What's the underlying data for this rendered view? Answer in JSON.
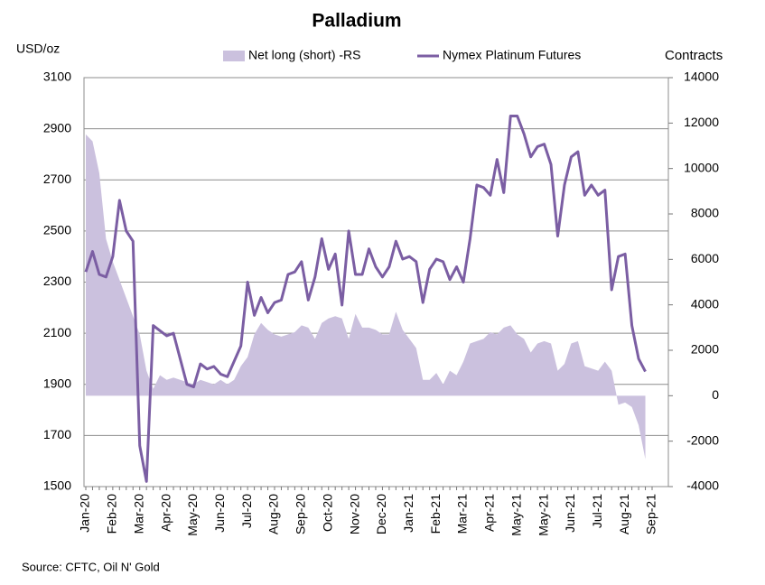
{
  "chart_data": {
    "type": "line-area",
    "title": "Palladium",
    "ylabel": "USD/oz",
    "y2label": "Contracts",
    "source": "Source: CFTC, Oil N' Gold",
    "categories": [
      "Jan-20",
      null,
      null,
      null,
      "Feb-20",
      null,
      null,
      null,
      "Mar-20",
      null,
      null,
      null,
      "Apr-20",
      null,
      null,
      null,
      "May-20",
      null,
      null,
      null,
      "Jun-20",
      null,
      null,
      null,
      "Jul-20",
      null,
      null,
      null,
      "Aug-20",
      null,
      null,
      null,
      "Sep-20",
      null,
      null,
      null,
      "Oct-20",
      null,
      null,
      null,
      "Nov-20",
      null,
      null,
      null,
      "Dec-20",
      null,
      null,
      null,
      "Jan-21",
      null,
      null,
      null,
      "Feb-21",
      null,
      null,
      null,
      "Mar-21",
      null,
      null,
      null,
      "Apr-21",
      null,
      null,
      null,
      "May-21",
      null,
      null,
      null,
      "May-21",
      null,
      null,
      null,
      "Jun-21",
      null,
      null,
      null,
      "Jul-21",
      null,
      null,
      null,
      "Aug-21",
      null,
      null,
      null,
      "Sep-21"
    ],
    "series": [
      {
        "name": "Net long (short) -RS",
        "type": "area",
        "axis": "y2",
        "color": "#cbc1de",
        "values": [
          11500,
          11200,
          9800,
          6900,
          5900,
          5100,
          4300,
          3500,
          2700,
          1100,
          300,
          900,
          700,
          800,
          700,
          600,
          500,
          700,
          600,
          500,
          700,
          500,
          700,
          1300,
          1700,
          2700,
          3200,
          2900,
          2700,
          2600,
          2700,
          2800,
          3100,
          3000,
          2500,
          3200,
          3400,
          3500,
          3400,
          2500,
          3600,
          3000,
          3000,
          2900,
          2700,
          2700,
          3700,
          2900,
          2500,
          2100,
          700,
          700,
          1000,
          500,
          1100,
          900,
          1500,
          2300,
          2400,
          2500,
          2800,
          2700,
          3000,
          3100,
          2700,
          2500,
          1900,
          2300,
          2400,
          2300,
          1100,
          1400,
          2300,
          2400,
          1300,
          1200,
          1100,
          1500,
          1100,
          -400,
          -300,
          -500,
          -1300,
          -2800,
          null
        ]
      },
      {
        "name": "Nymex Platinum Futures",
        "type": "line",
        "color": "#7b5ea3",
        "values": [
          2340,
          2420,
          2330,
          2320,
          2400,
          2620,
          2500,
          2460,
          1660,
          1520,
          2130,
          2110,
          2090,
          2100,
          2000,
          1900,
          1890,
          1980,
          1960,
          1970,
          1940,
          1930,
          1990,
          2050,
          2300,
          2170,
          2240,
          2180,
          2220,
          2230,
          2330,
          2340,
          2380,
          2230,
          2320,
          2470,
          2350,
          2410,
          2210,
          2500,
          2330,
          2330,
          2430,
          2360,
          2320,
          2360,
          2460,
          2390,
          2400,
          2380,
          2220,
          2350,
          2390,
          2380,
          2310,
          2360,
          2300,
          2470,
          2680,
          2670,
          2640,
          2780,
          2650,
          2950,
          2950,
          2880,
          2790,
          2830,
          2840,
          2760,
          2480,
          2680,
          2790,
          2810,
          2640,
          2680,
          2640,
          2660,
          2270,
          2400,
          2410,
          2130,
          2000,
          1950,
          null
        ]
      }
    ],
    "ylim": [
      1500,
      3100
    ],
    "yticks": [
      1500,
      1700,
      1900,
      2100,
      2300,
      2500,
      2700,
      2900,
      3100
    ],
    "y2lim": [
      -4000,
      14000
    ],
    "y2ticks": [
      -4000,
      -2000,
      0,
      2000,
      4000,
      6000,
      8000,
      10000,
      12000,
      14000
    ],
    "grid": true
  }
}
